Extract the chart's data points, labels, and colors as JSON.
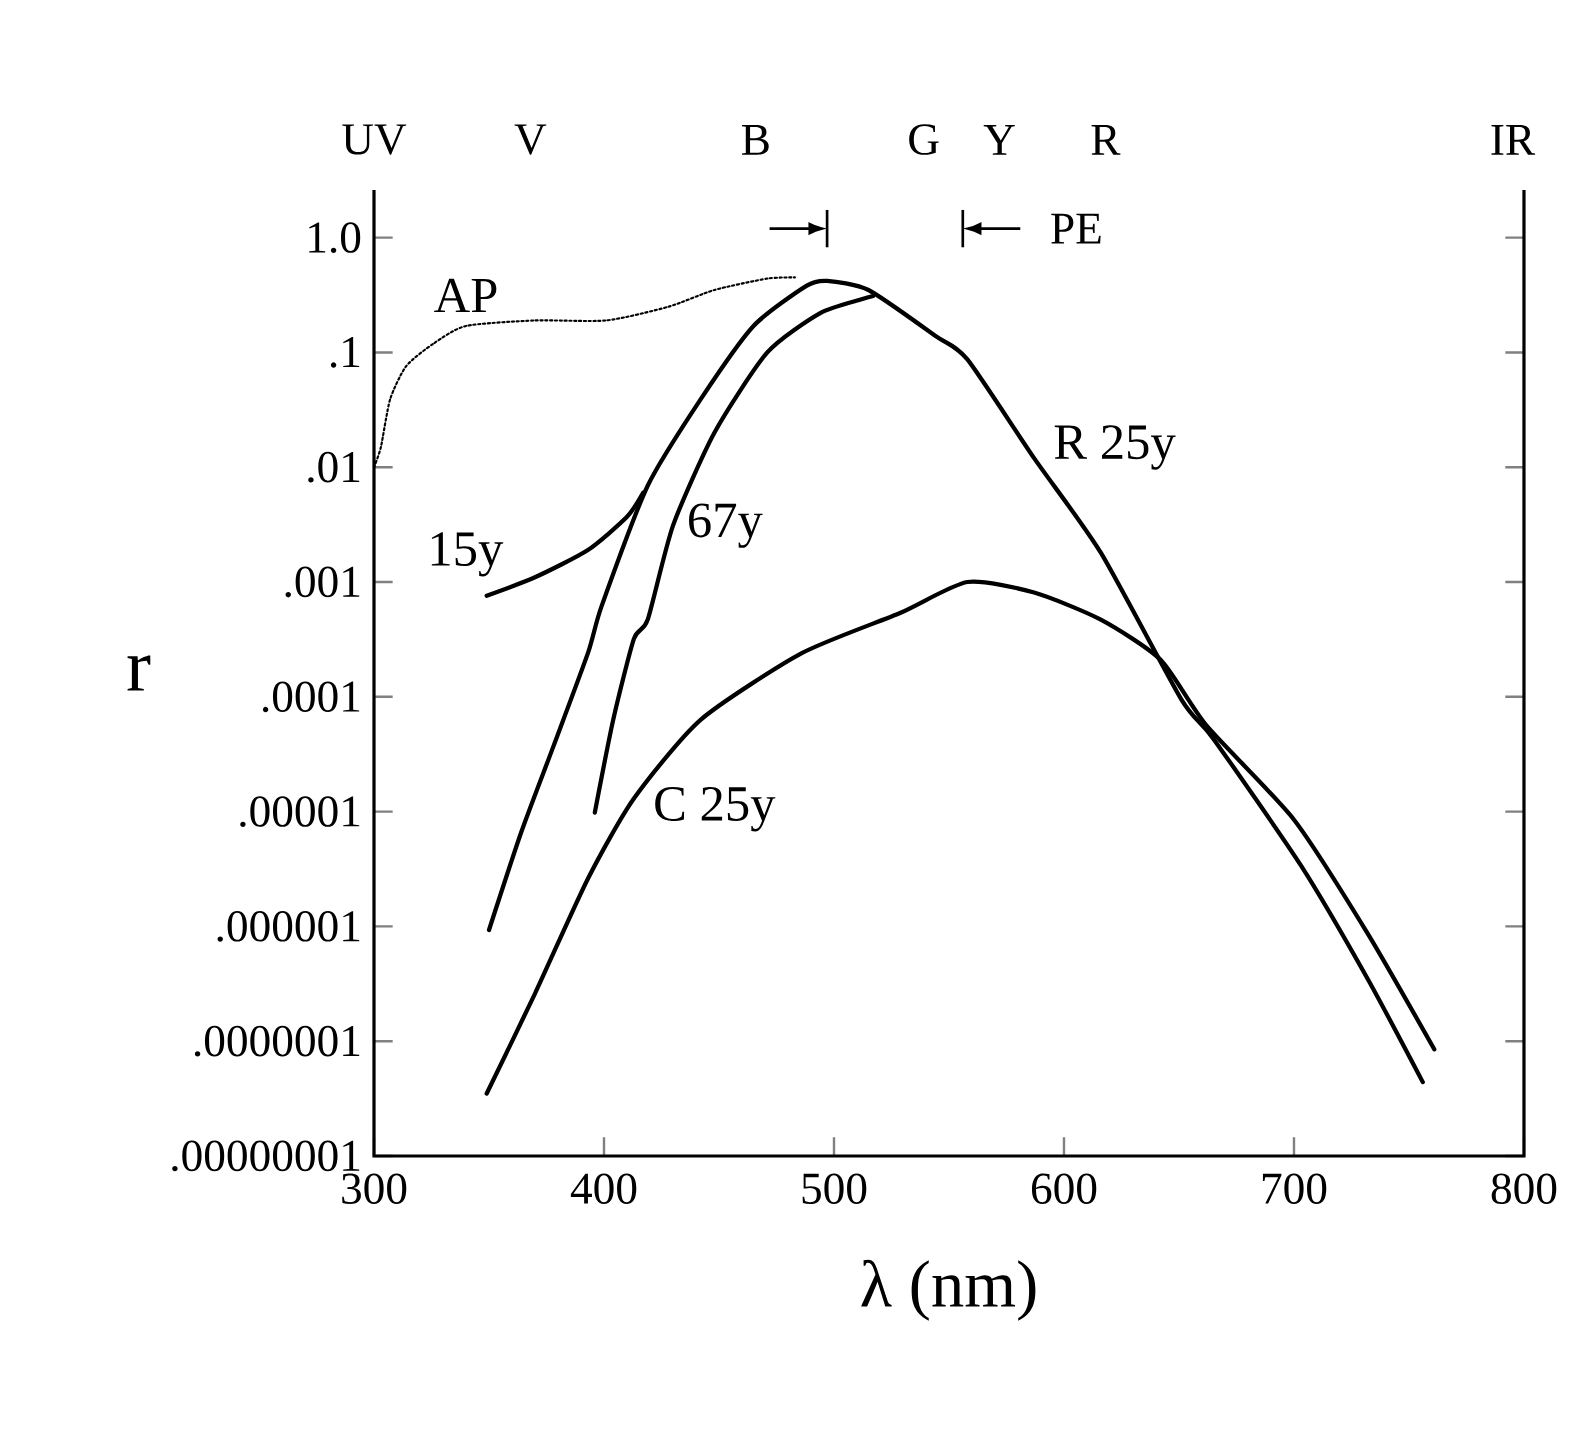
{
  "chart_data": {
    "type": "line",
    "xlabel": "λ (nm)",
    "ylabel": "r",
    "log": "y",
    "grid": false,
    "marker": "none",
    "xlim": [
      300,
      800
    ],
    "xticks": [
      300,
      400,
      500,
      600,
      700,
      800
    ],
    "annotations": [
      "UV",
      "V",
      "B",
      "G",
      "Y",
      "R",
      "IR",
      "PE"
    ],
    "ylim": [
      1e-08,
      2.6
    ],
    "yticks": [
      {
        "value": 1,
        "label": "1.0"
      },
      {
        "value": 0.1,
        "label": ".1"
      },
      {
        "value": 0.01,
        "label": ".01"
      },
      {
        "value": 0.001,
        "label": ".001"
      },
      {
        "value": 0.0001,
        "label": ".0001"
      },
      {
        "value": 1e-05,
        "label": ".00001"
      },
      {
        "value": 1e-06,
        "label": ".000001"
      },
      {
        "value": 1e-07,
        "label": ".0000001"
      },
      {
        "value": 1e-08,
        "label": ".00000001"
      }
    ],
    "series": [
      {
        "name": "AP",
        "color": "#000000",
        "line_style": "dotted",
        "x": [
          300,
          303,
          307,
          314,
          326,
          340,
          370,
          401,
          428,
          448,
          471,
          483
        ],
        "values": [
          0.01,
          0.015,
          0.039,
          0.076,
          0.12,
          0.17,
          0.19,
          0.19,
          0.25,
          0.35,
          0.44,
          0.45
        ]
      },
      {
        "name": "15y",
        "color": "#000000",
        "line_style": "solid",
        "x": [
          349,
          370,
          393,
          410,
          417
        ],
        "values": [
          0.00076,
          0.0011,
          0.0019,
          0.0037,
          0.006
        ]
      },
      {
        "name": "67y",
        "color": "#000000",
        "line_style": "solid",
        "x": [
          396,
          404,
          413,
          419,
          430,
          448,
          471,
          494,
          512,
          517
        ],
        "values": [
          9.8e-06,
          6.3e-05,
          0.00032,
          0.00047,
          0.0031,
          0.02,
          0.1,
          0.22,
          0.29,
          0.31
        ]
      },
      {
        "name": "R 25y",
        "color": "#000000",
        "line_style": "solid",
        "x": [
          350,
          364,
          378,
          393,
          399,
          419,
          442,
          465,
          488,
          497,
          515,
          544,
          558,
          587,
          616,
          651,
          665,
          703,
          732,
          756
        ],
        "values": [
          9.3e-07,
          6.6e-06,
          3.7e-05,
          0.00024,
          0.00062,
          0.0069,
          0.039,
          0.17,
          0.38,
          0.42,
          0.35,
          0.14,
          0.087,
          0.012,
          0.0018,
          9.5e-05,
          4.3e-05,
          3.4e-06,
          3.5e-07,
          4.4e-08
        ]
      },
      {
        "name": "C 25y",
        "color": "#000000",
        "line_style": "solid",
        "x": [
          349,
          370,
          393,
          413,
          442,
          486,
          529,
          558,
          587,
          616,
          642,
          662,
          700,
          732,
          761
        ],
        "values": [
          3.5e-08,
          2.6e-07,
          2.6e-06,
          1.3e-05,
          6.3e-05,
          0.00024,
          0.00054,
          0.001,
          0.00081,
          0.00047,
          0.00021,
          5.6e-05,
          8.5e-06,
          8.7e-07,
          8.5e-08
        ]
      }
    ]
  }
}
